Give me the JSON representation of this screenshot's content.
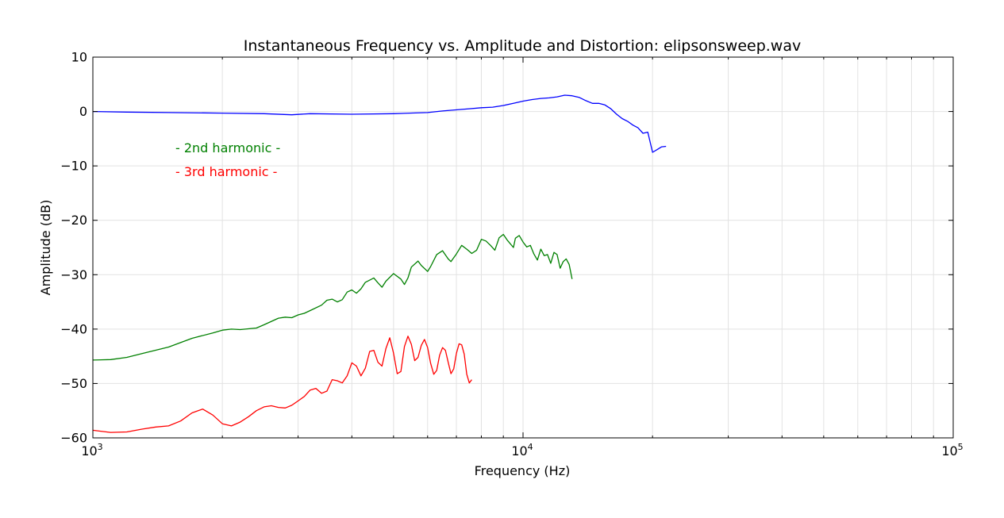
{
  "chart_data": {
    "type": "line",
    "title": "Instantaneous Frequency vs. Amplitude and Distortion: elipsonsweep.wav",
    "xlabel": "Frequency (Hz)",
    "ylabel": "Amplitude (dB)",
    "x_scale": "log",
    "xlim": [
      1000,
      100000
    ],
    "ylim": [
      -60,
      10
    ],
    "grid": true,
    "x_ticks": [
      {
        "value": 1000,
        "base": "10",
        "exp": "3"
      },
      {
        "value": 10000,
        "base": "10",
        "exp": "4"
      },
      {
        "value": 100000,
        "base": "10",
        "exp": "5"
      }
    ],
    "y_ticks": [
      10,
      0,
      -10,
      -20,
      -30,
      -40,
      -50,
      -60
    ],
    "y_tick_labels": [
      "10",
      "0",
      "−10",
      "−20",
      "−30",
      "−40",
      "−50",
      "−60"
    ],
    "annotations": [
      {
        "text": "- 2nd harmonic -",
        "color": "#008000"
      },
      {
        "text": "- 3rd harmonic -",
        "color": "#ff0000"
      }
    ],
    "series": [
      {
        "color": "#0000ff",
        "points": [
          [
            1000,
            0
          ],
          [
            1200,
            -0.1
          ],
          [
            1500,
            -0.2
          ],
          [
            2000,
            -0.3
          ],
          [
            2500,
            -0.4
          ],
          [
            2900,
            -0.6
          ],
          [
            3200,
            -0.4
          ],
          [
            4000,
            -0.5
          ],
          [
            5000,
            -0.4
          ],
          [
            6000,
            -0.2
          ],
          [
            6500,
            0.1
          ],
          [
            7500,
            0.5
          ],
          [
            8000,
            0.7
          ],
          [
            8500,
            0.8
          ],
          [
            9000,
            1.1
          ],
          [
            9500,
            1.5
          ],
          [
            10000,
            1.9
          ],
          [
            10500,
            2.2
          ],
          [
            11000,
            2.4
          ],
          [
            11500,
            2.5
          ],
          [
            12000,
            2.7
          ],
          [
            12500,
            3
          ],
          [
            13000,
            2.9
          ],
          [
            13500,
            2.6
          ],
          [
            14000,
            2
          ],
          [
            14500,
            1.5
          ],
          [
            15000,
            1.5
          ],
          [
            15500,
            1.2
          ],
          [
            16000,
            0.5
          ],
          [
            16500,
            -0.5
          ],
          [
            17000,
            -1.3
          ],
          [
            17500,
            -1.8
          ],
          [
            18000,
            -2.5
          ],
          [
            18500,
            -3
          ],
          [
            19000,
            -4
          ],
          [
            19500,
            -3.8
          ],
          [
            20000,
            -7.5
          ],
          [
            20500,
            -7
          ],
          [
            21000,
            -6.5
          ],
          [
            21500,
            -6.4
          ]
        ]
      },
      {
        "color": "#008000",
        "points": [
          [
            1000,
            -45.7
          ],
          [
            1100,
            -45.6
          ],
          [
            1200,
            -45.2
          ],
          [
            1300,
            -44.5
          ],
          [
            1500,
            -43.3
          ],
          [
            1700,
            -41.7
          ],
          [
            1900,
            -40.7
          ],
          [
            2000,
            -40.2
          ],
          [
            2100,
            -40
          ],
          [
            2200,
            -40.1
          ],
          [
            2400,
            -39.8
          ],
          [
            2500,
            -39.2
          ],
          [
            2700,
            -38
          ],
          [
            2800,
            -37.8
          ],
          [
            2900,
            -37.9
          ],
          [
            3000,
            -37.4
          ],
          [
            3100,
            -37.1
          ],
          [
            3200,
            -36.6
          ],
          [
            3400,
            -35.6
          ],
          [
            3500,
            -34.7
          ],
          [
            3600,
            -34.5
          ],
          [
            3700,
            -35
          ],
          [
            3800,
            -34.6
          ],
          [
            3900,
            -33.2
          ],
          [
            4000,
            -32.8
          ],
          [
            4100,
            -33.4
          ],
          [
            4200,
            -32.6
          ],
          [
            4300,
            -31.4
          ],
          [
            4500,
            -30.6
          ],
          [
            4600,
            -31.5
          ],
          [
            4700,
            -32.3
          ],
          [
            4800,
            -31.2
          ],
          [
            5000,
            -29.8
          ],
          [
            5200,
            -30.8
          ],
          [
            5300,
            -31.8
          ],
          [
            5400,
            -30.6
          ],
          [
            5500,
            -28.6
          ],
          [
            5700,
            -27.5
          ],
          [
            5800,
            -28.3
          ],
          [
            6000,
            -29.4
          ],
          [
            6100,
            -28.5
          ],
          [
            6300,
            -26.3
          ],
          [
            6500,
            -25.6
          ],
          [
            6700,
            -27.1
          ],
          [
            6800,
            -27.6
          ],
          [
            7000,
            -26.2
          ],
          [
            7200,
            -24.6
          ],
          [
            7400,
            -25.3
          ],
          [
            7600,
            -26.1
          ],
          [
            7800,
            -25.5
          ],
          [
            8000,
            -23.5
          ],
          [
            8200,
            -23.8
          ],
          [
            8400,
            -24.6
          ],
          [
            8600,
            -25.5
          ],
          [
            8800,
            -23.2
          ],
          [
            9000,
            -22.6
          ],
          [
            9200,
            -23.7
          ],
          [
            9500,
            -25
          ],
          [
            9600,
            -23.3
          ],
          [
            9800,
            -22.8
          ],
          [
            10000,
            -24
          ],
          [
            10200,
            -24.9
          ],
          [
            10400,
            -24.6
          ],
          [
            10600,
            -26.2
          ],
          [
            10800,
            -27.3
          ],
          [
            11000,
            -25.3
          ],
          [
            11200,
            -26.5
          ],
          [
            11400,
            -26.3
          ],
          [
            11600,
            -27.9
          ],
          [
            11800,
            -25.9
          ],
          [
            12000,
            -26.3
          ],
          [
            12200,
            -28.8
          ],
          [
            12400,
            -27.6
          ],
          [
            12600,
            -27.1
          ],
          [
            12800,
            -28.1
          ],
          [
            13000,
            -30.8
          ]
        ]
      },
      {
        "color": "#ff0000",
        "points": [
          [
            1000,
            -58.6
          ],
          [
            1100,
            -59
          ],
          [
            1200,
            -58.9
          ],
          [
            1300,
            -58.4
          ],
          [
            1400,
            -58
          ],
          [
            1500,
            -57.8
          ],
          [
            1600,
            -56.9
          ],
          [
            1700,
            -55.4
          ],
          [
            1800,
            -54.7
          ],
          [
            1900,
            -55.8
          ],
          [
            2000,
            -57.4
          ],
          [
            2100,
            -57.8
          ],
          [
            2200,
            -57.1
          ],
          [
            2300,
            -56.1
          ],
          [
            2400,
            -55
          ],
          [
            2500,
            -54.3
          ],
          [
            2600,
            -54.1
          ],
          [
            2700,
            -54.4
          ],
          [
            2800,
            -54.5
          ],
          [
            2900,
            -54
          ],
          [
            3000,
            -53.2
          ],
          [
            3100,
            -52.4
          ],
          [
            3200,
            -51.2
          ],
          [
            3300,
            -50.9
          ],
          [
            3400,
            -51.8
          ],
          [
            3500,
            -51.4
          ],
          [
            3600,
            -49.3
          ],
          [
            3700,
            -49.5
          ],
          [
            3800,
            -49.9
          ],
          [
            3900,
            -48.6
          ],
          [
            4000,
            -46.2
          ],
          [
            4100,
            -46.8
          ],
          [
            4200,
            -48.6
          ],
          [
            4300,
            -47.2
          ],
          [
            4400,
            -44.1
          ],
          [
            4500,
            -43.9
          ],
          [
            4600,
            -46.1
          ],
          [
            4700,
            -46.8
          ],
          [
            4800,
            -43.6
          ],
          [
            4900,
            -41.6
          ],
          [
            5000,
            -44.4
          ],
          [
            5100,
            -48.2
          ],
          [
            5200,
            -47.8
          ],
          [
            5300,
            -43.2
          ],
          [
            5400,
            -41.3
          ],
          [
            5500,
            -42.8
          ],
          [
            5600,
            -45.8
          ],
          [
            5700,
            -45.2
          ],
          [
            5800,
            -43
          ],
          [
            5900,
            -41.9
          ],
          [
            6000,
            -43.4
          ],
          [
            6100,
            -46.3
          ],
          [
            6200,
            -48.3
          ],
          [
            6300,
            -47.6
          ],
          [
            6400,
            -44.8
          ],
          [
            6500,
            -43.4
          ],
          [
            6600,
            -43.9
          ],
          [
            6700,
            -46.1
          ],
          [
            6800,
            -48.2
          ],
          [
            6900,
            -47.3
          ],
          [
            7000,
            -44.5
          ],
          [
            7100,
            -42.7
          ],
          [
            7200,
            -42.9
          ],
          [
            7300,
            -44.6
          ],
          [
            7400,
            -48.3
          ],
          [
            7500,
            -49.9
          ],
          [
            7600,
            -49.3
          ]
        ]
      }
    ]
  }
}
